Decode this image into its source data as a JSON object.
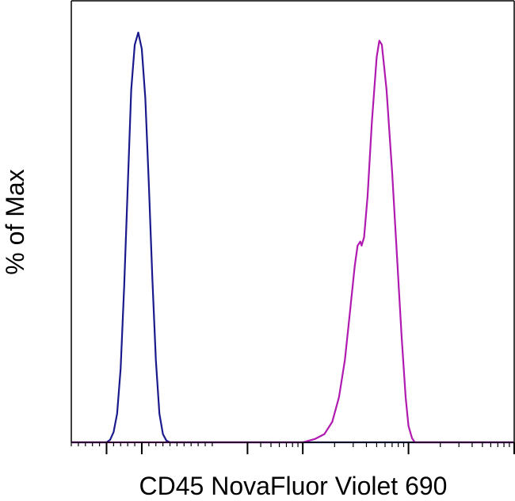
{
  "chart_data": {
    "type": "line",
    "title": "",
    "xlabel": "CD45 NovaFluor Violet 690",
    "ylabel": "% of Max",
    "x_scale": "log",
    "xlim": [
      -200,
      100000
    ],
    "ylim": [
      0,
      100
    ],
    "grid": false,
    "legend": "none",
    "series": [
      {
        "color": "#1a1a8c",
        "points": [
          [
            -200,
            0
          ],
          [
            -150,
            0
          ],
          [
            -100,
            0
          ],
          [
            -90,
            0.6
          ],
          [
            -80,
            2.5
          ],
          [
            -70,
            7
          ],
          [
            -60,
            18
          ],
          [
            -50,
            38
          ],
          [
            -40,
            62
          ],
          [
            -30,
            86
          ],
          [
            -20,
            97
          ],
          [
            -10,
            100
          ],
          [
            0,
            96
          ],
          [
            10,
            84
          ],
          [
            20,
            63
          ],
          [
            30,
            40
          ],
          [
            40,
            20
          ],
          [
            50,
            7
          ],
          [
            60,
            2
          ],
          [
            70,
            0.4
          ],
          [
            80,
            0
          ],
          [
            150,
            0
          ],
          [
            100000,
            0
          ]
        ]
      },
      {
        "color": "#b01ab0",
        "points": [
          [
            -200,
            0
          ],
          [
            600,
            0
          ],
          [
            1000,
            0
          ],
          [
            1300,
            0.8
          ],
          [
            1600,
            2
          ],
          [
            1900,
            5
          ],
          [
            2200,
            11
          ],
          [
            2500,
            20
          ],
          [
            2800,
            32
          ],
          [
            3100,
            43
          ],
          [
            3300,
            48
          ],
          [
            3500,
            49
          ],
          [
            3600,
            48
          ],
          [
            3800,
            50
          ],
          [
            4100,
            60
          ],
          [
            4500,
            78
          ],
          [
            5000,
            94
          ],
          [
            5300,
            98
          ],
          [
            5600,
            97
          ],
          [
            6200,
            86
          ],
          [
            7000,
            66
          ],
          [
            7800,
            45
          ],
          [
            8600,
            26
          ],
          [
            9400,
            11
          ],
          [
            10000,
            4
          ],
          [
            10800,
            1
          ],
          [
            11500,
            0
          ],
          [
            15000,
            0
          ],
          [
            100000,
            0
          ]
        ]
      }
    ]
  }
}
